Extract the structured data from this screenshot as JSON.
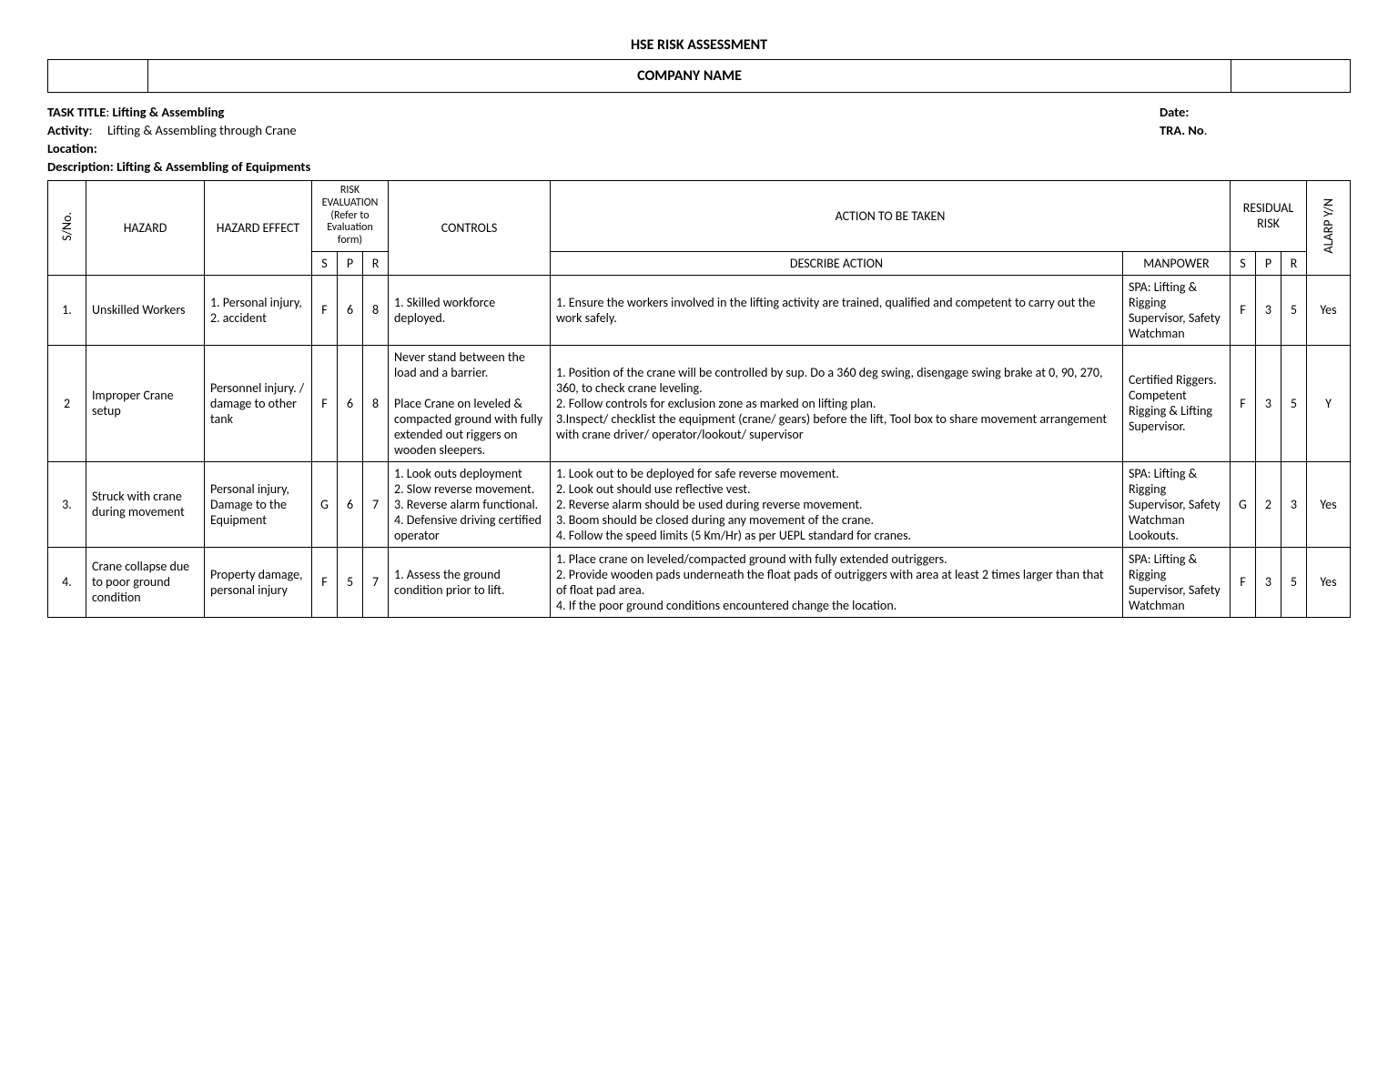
{
  "doc_title": "HSE RISK ASSESSMENT",
  "company_name": "COMPANY NAME",
  "task_title_label": "TASK TITLE",
  "task_title": "Lifting & Assembling",
  "activity_label": "Activity",
  "activity": "Lifting & Assembling through Crane",
  "location_label": "Location:",
  "description_label": "Description: Lifting & Assembling of Equipments",
  "date_label": "Date:",
  "tra_label": "TRA. No",
  "headers": {
    "sno": "S/No.",
    "hazard": "HAZARD",
    "hazard_effect": "HAZARD EFFECT",
    "risk_eval": "RISK EVALUATION\n(Refer to Evaluation form)",
    "controls": "CONTROLS",
    "action": "ACTION TO BE TAKEN",
    "desc_action": "DESCRIBE ACTION",
    "manpower": "MANPOWER",
    "residual": "RESIDUAL RISK",
    "alarp": "ALARP Y/N",
    "S": "S",
    "P": "P",
    "R": "R"
  },
  "rows": [
    {
      "sno": "1.",
      "hazard": "Unskilled Workers",
      "effect": "1. Personal injury,\n2. accident",
      "s1": "F",
      "p1": "6",
      "r1": "8",
      "controls": "1. Skilled workforce deployed.",
      "desc": "1. Ensure the workers involved in the lifting activity are trained, qualified and competent to carry out the work safely.",
      "manpower": "SPA: Lifting & Rigging Supervisor, Safety Watchman",
      "s2": "F",
      "p2": "3",
      "r2": "5",
      "alarp": "Yes"
    },
    {
      "sno": "2",
      "hazard": "Improper Crane setup",
      "effect": "Personnel injury. / damage to other tank",
      "s1": "F",
      "p1": "6",
      "r1": "8",
      "controls": "Never stand between the load and a barrier.\n\nPlace Crane on leveled & compacted ground with fully extended out riggers on wooden sleepers.",
      "desc": "1. Position of the crane will be controlled by sup. Do a 360 deg swing, disengage swing brake at 0, 90, 270, 360, to check crane leveling.\n2. Follow controls for exclusion zone as marked on lifting plan.\n3.Inspect/ checklist the equipment (crane/ gears) before the lift, Tool box to share movement arrangement with crane driver/ operator/lookout/ supervisor",
      "manpower": "Certified Riggers. Competent Rigging & Lifting Supervisor.",
      "s2": "F",
      "p2": "3",
      "r2": "5",
      "alarp": "Y"
    },
    {
      "sno": "3.",
      "hazard": "Struck with crane during movement",
      "effect": "Personal injury, Damage to the Equipment",
      "s1": "G",
      "p1": "6",
      "r1": "7",
      "controls": "1. Look outs deployment\n2. Slow reverse movement.\n3. Reverse alarm functional.\n4. Defensive driving certified operator",
      "desc": "1. Look out to be deployed for safe reverse movement.\n2. Look out should use reflective vest.\n2. Reverse alarm should be used during reverse movement.\n3. Boom should be closed during any movement of the crane.\n4. Follow the speed limits (5 Km/Hr) as per UEPL standard for cranes.",
      "manpower": "SPA: Lifting & Rigging Supervisor, Safety Watchman Lookouts.",
      "s2": "G",
      "p2": "2",
      "r2": "3",
      "alarp": "Yes"
    },
    {
      "sno": "4.",
      "hazard": "Crane collapse due to poor ground condition",
      "effect": "Property damage, personal injury",
      "s1": "F",
      "p1": "5",
      "r1": "7",
      "controls": "1. Assess the ground condition prior to lift.",
      "desc": "1. Place crane on leveled/compacted ground with fully extended outriggers.\n2. Provide wooden pads underneath the float pads of outriggers with area at least 2 times larger than that of float pad area.\n4. If the poor ground conditions encountered change the location.",
      "manpower": "SPA: Lifting & Rigging Supervisor, Safety Watchman",
      "s2": "F",
      "p2": "3",
      "r2": "5",
      "alarp": "Yes"
    }
  ]
}
